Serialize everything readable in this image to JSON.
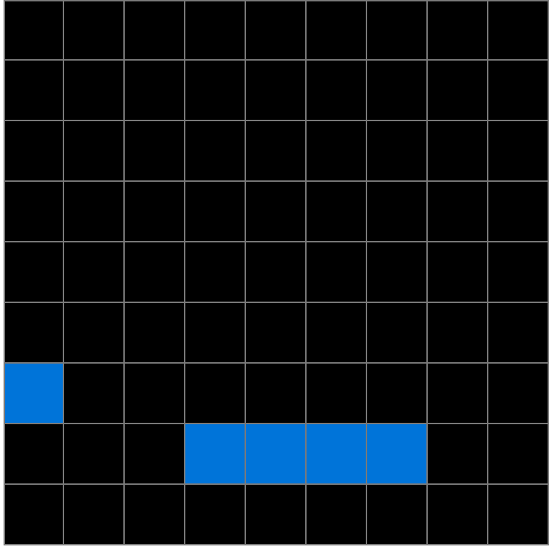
{
  "grid": {
    "rows": 9,
    "cols": 9,
    "empty_color": "#000000",
    "line_color": "#7a7a7a",
    "cells": [
      [
        0,
        0,
        0,
        0,
        0,
        0,
        0,
        0,
        0
      ],
      [
        0,
        0,
        0,
        0,
        0,
        0,
        0,
        0,
        0
      ],
      [
        0,
        0,
        0,
        0,
        0,
        0,
        0,
        0,
        0
      ],
      [
        0,
        0,
        0,
        0,
        0,
        0,
        0,
        0,
        0
      ],
      [
        0,
        0,
        0,
        0,
        0,
        0,
        0,
        0,
        0
      ],
      [
        0,
        0,
        0,
        0,
        0,
        0,
        0,
        0,
        0
      ],
      [
        1,
        0,
        0,
        0,
        0,
        0,
        0,
        0,
        0
      ],
      [
        0,
        0,
        0,
        1,
        1,
        1,
        1,
        0,
        0
      ],
      [
        0,
        0,
        0,
        0,
        0,
        0,
        0,
        0,
        0
      ]
    ],
    "palette": {
      "0": "#000000",
      "1": "#0074d9"
    }
  }
}
